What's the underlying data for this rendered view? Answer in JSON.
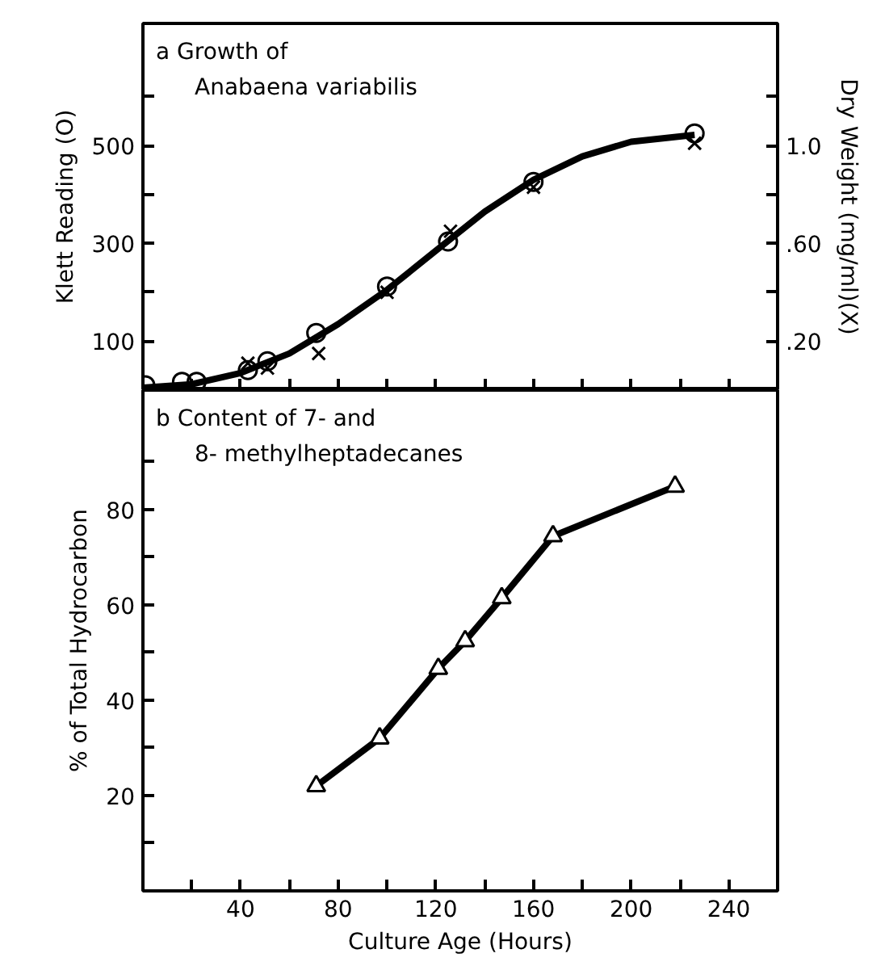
{
  "chart_data": [
    {
      "type": "scatter",
      "ylabel": "Klett Reading (O)",
      "y2label": "Dry Weight (mg/ml)(X)",
      "annotations": [
        "a  Growth of",
        "Anabaena variabilis"
      ],
      "xlim": [
        0,
        260
      ],
      "xticks": [
        20,
        40,
        60,
        80,
        100,
        120,
        140,
        160,
        180,
        200,
        220,
        240
      ],
      "ylim": [
        0,
        750
      ],
      "yticks": [
        {
          "value": 100,
          "label": "100"
        },
        {
          "value": 200,
          "label": null
        },
        {
          "value": 300,
          "label": "300"
        },
        {
          "value": 400,
          "label": null
        },
        {
          "value": 500,
          "label": "500"
        },
        {
          "value": 600,
          "label": null
        }
      ],
      "y2lim": [
        0,
        1.5
      ],
      "y2ticks": [
        {
          "value": 0.2,
          "label": ".20"
        },
        {
          "value": 0.4,
          "label": null
        },
        {
          "value": 0.6,
          "label": ".60"
        },
        {
          "value": 0.8,
          "label": null
        },
        {
          "value": 1.0,
          "label": "1.0"
        },
        {
          "value": 1.2,
          "label": null
        }
      ],
      "tick_labels": "y",
      "grid": false,
      "series": [
        {
          "marker": "circle",
          "color": "#000000",
          "x": [
            1,
            16,
            22,
            43,
            51,
            71,
            100,
            125,
            160,
            226
          ],
          "values": [
            10,
            17,
            17,
            41,
            59,
            117,
            212,
            304,
            426,
            525
          ]
        },
        {
          "marker": "cross",
          "axis": "y2",
          "color": "#000000",
          "x": [
            43,
            51,
            72,
            100,
            126,
            160,
            226
          ],
          "values": [
            0.11,
            0.09,
            0.15,
            0.4,
            0.65,
            0.83,
            1.01
          ]
        },
        {
          "type": "line",
          "marker": "none",
          "line_style": "solid",
          "color": "#000000",
          "x": [
            0,
            20,
            40,
            60,
            80,
            100,
            120,
            140,
            160,
            180,
            200,
            226
          ],
          "values": [
            5,
            12,
            35,
            75,
            135,
            205,
            285,
            365,
            430,
            478,
            508,
            522
          ]
        }
      ]
    },
    {
      "type": "line",
      "xlabel": "Culture Age (Hours)",
      "ylabel": "% of Total Hydrocarbon",
      "annotations": [
        "b  Content of  7-  and",
        "8- methylheptadecanes"
      ],
      "xlim": [
        0,
        260
      ],
      "xticks": [
        {
          "value": 20,
          "label": null
        },
        40,
        {
          "value": 60,
          "label": null
        },
        80,
        {
          "value": 100,
          "label": null
        },
        120,
        {
          "value": 140,
          "label": null
        },
        160,
        {
          "value": 180,
          "label": null
        },
        200,
        {
          "value": 220,
          "label": null
        },
        240
      ],
      "ylim": [
        0,
        105
      ],
      "yticks": [
        {
          "value": 10,
          "label": null
        },
        20,
        {
          "value": 30,
          "label": null
        },
        40,
        {
          "value": 50,
          "label": null
        },
        60,
        {
          "value": 70,
          "label": null
        },
        80,
        {
          "value": 90,
          "label": null
        }
      ],
      "grid": false,
      "series": [
        {
          "marker": "triangle",
          "line_style": "solid",
          "color": "#000000",
          "x": [
            71,
            97,
            121,
            132,
            147,
            168,
            218
          ],
          "values": [
            22,
            32,
            46.6,
            52.4,
            61.4,
            74.4,
            84.8
          ]
        }
      ]
    }
  ]
}
